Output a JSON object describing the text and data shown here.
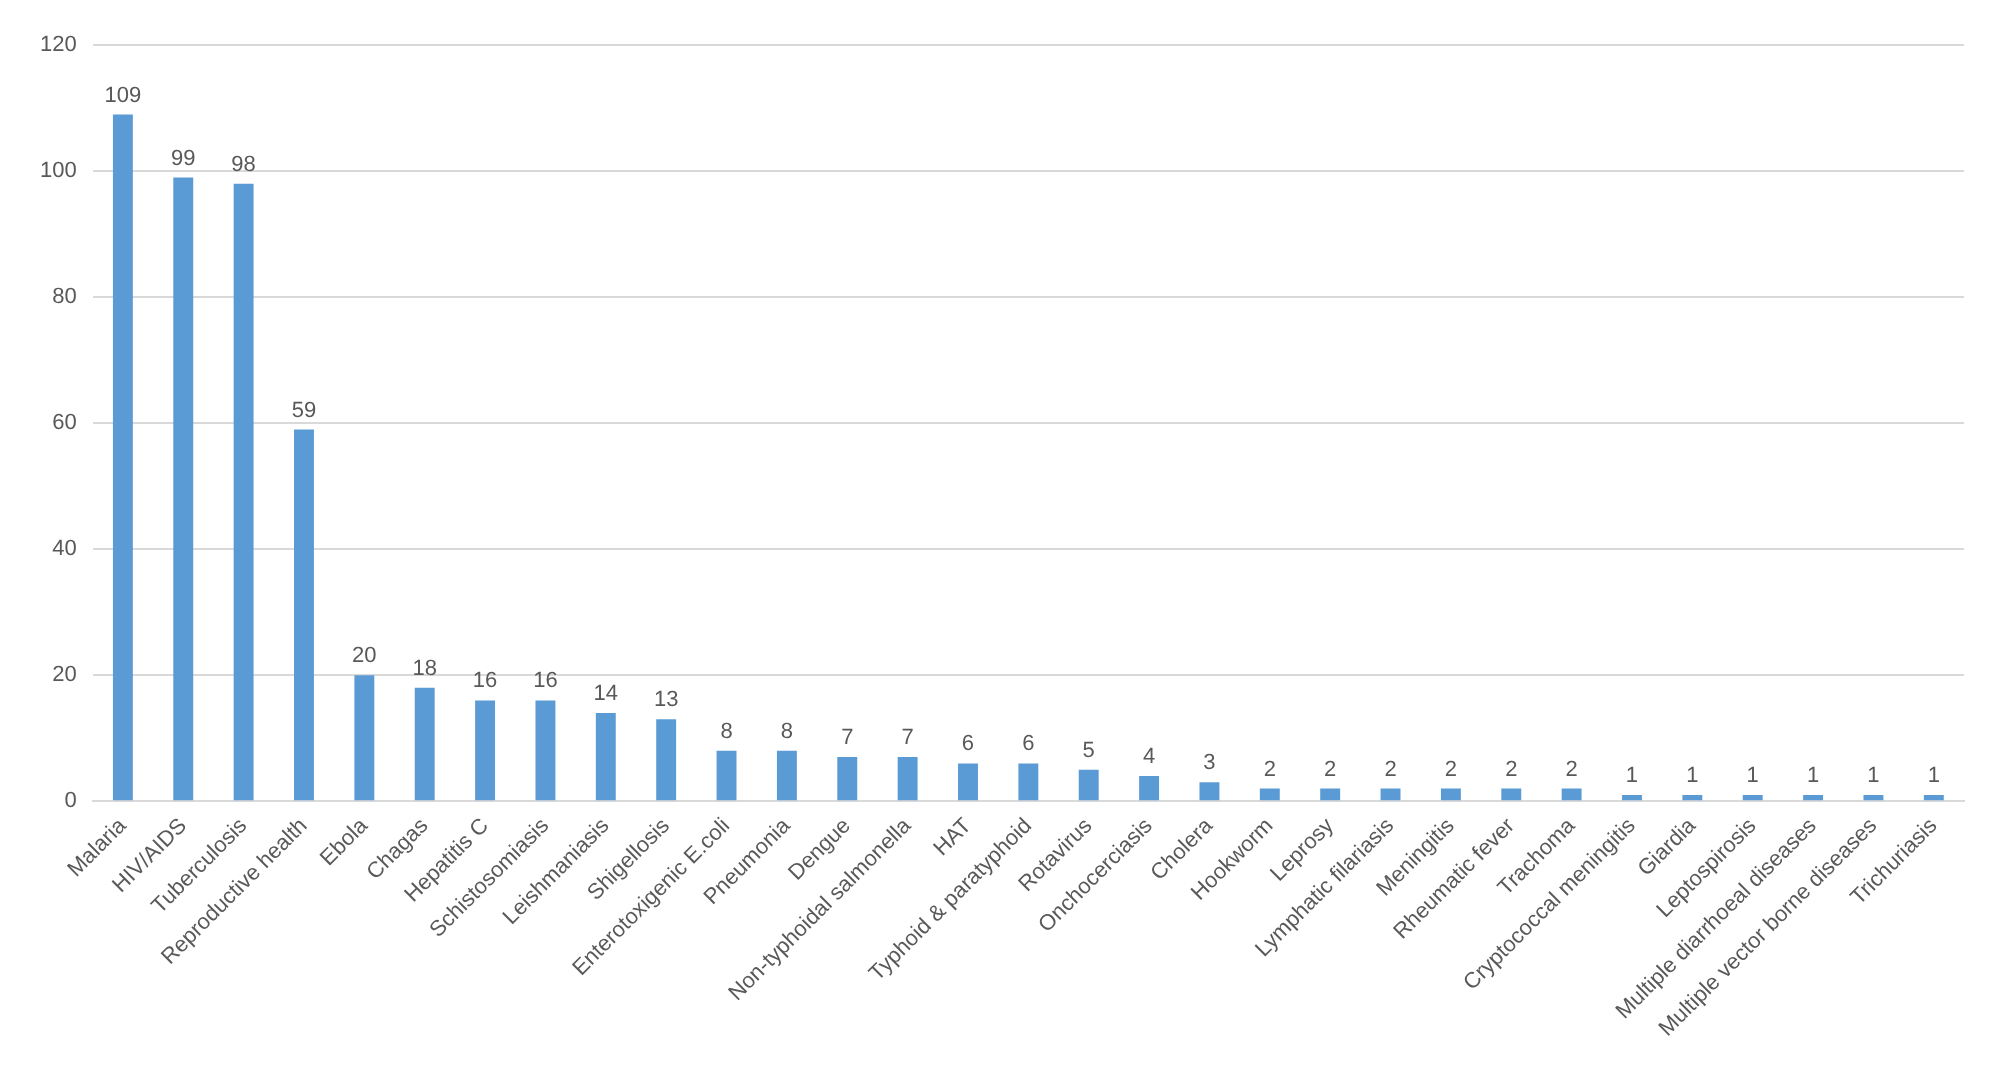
{
  "chart_data": {
    "type": "bar",
    "categories": [
      "Malaria",
      "HIV/AIDS",
      "Tuberculosis",
      "Reproductive health",
      "Ebola",
      "Chagas",
      "Hepatitis C",
      "Schistosomiasis",
      "Leishmaniasis",
      "Shigellosis",
      "Enterotoxigenic E.coli",
      "Pneumonia",
      "Dengue",
      "Non-typhoidal salmonella",
      "HAT",
      "Typhoid & paratyphoid",
      "Rotavirus",
      "Onchocerciasis",
      "Cholera",
      "Hookworm",
      "Leprosy",
      "Lymphatic filariasis",
      "Meningitis",
      "Rheumatic fever",
      "Trachoma",
      "Cryptococcal meningitis",
      "Giardia",
      "Leptospirosis",
      "Multiple diarrhoeal diseases",
      "Multiple vector borne diseases",
      "Trichuriasis"
    ],
    "values": [
      109,
      99,
      98,
      59,
      20,
      18,
      16,
      16,
      14,
      13,
      8,
      8,
      7,
      7,
      6,
      6,
      5,
      4,
      3,
      2,
      2,
      2,
      2,
      2,
      2,
      1,
      1,
      1,
      1,
      1,
      1
    ],
    "color": "#5b9bd5",
    "ylim": [
      0,
      120
    ],
    "yticks": [
      0,
      20,
      40,
      60,
      80,
      100,
      120
    ],
    "grid": "y",
    "data_labels": true,
    "legend": false
  }
}
